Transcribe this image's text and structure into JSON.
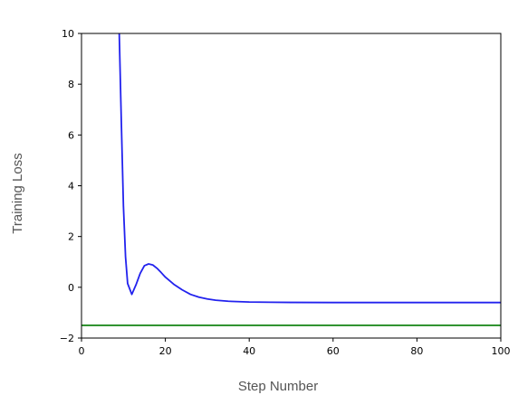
{
  "chart_data": {
    "type": "line",
    "xlabel": "Step Number",
    "ylabel": "Training Loss",
    "xlim": [
      0,
      100
    ],
    "ylim": [
      -2,
      10
    ],
    "xticks": [
      0,
      20,
      40,
      60,
      80,
      100
    ],
    "yticks": [
      -2,
      0,
      2,
      4,
      6,
      8,
      10
    ],
    "grid": false,
    "series": [
      {
        "color": "#2222ee",
        "x": [
          9,
          9.5,
          10,
          10.5,
          11,
          12,
          13,
          14,
          15,
          16,
          17,
          18,
          19,
          20,
          22,
          24,
          26,
          28,
          30,
          32,
          35,
          40,
          45,
          50,
          60,
          70,
          80,
          90,
          100
        ],
        "y": [
          10,
          6.5,
          3.2,
          1.2,
          0.15,
          -0.28,
          0.1,
          0.55,
          0.85,
          0.92,
          0.88,
          0.75,
          0.58,
          0.4,
          0.12,
          -0.1,
          -0.28,
          -0.39,
          -0.46,
          -0.51,
          -0.55,
          -0.58,
          -0.59,
          -0.595,
          -0.6,
          -0.6,
          -0.6,
          -0.6,
          -0.6
        ]
      },
      {
        "color": "#228b22",
        "x": [
          0,
          100
        ],
        "y": [
          -1.5,
          -1.5
        ]
      }
    ]
  }
}
